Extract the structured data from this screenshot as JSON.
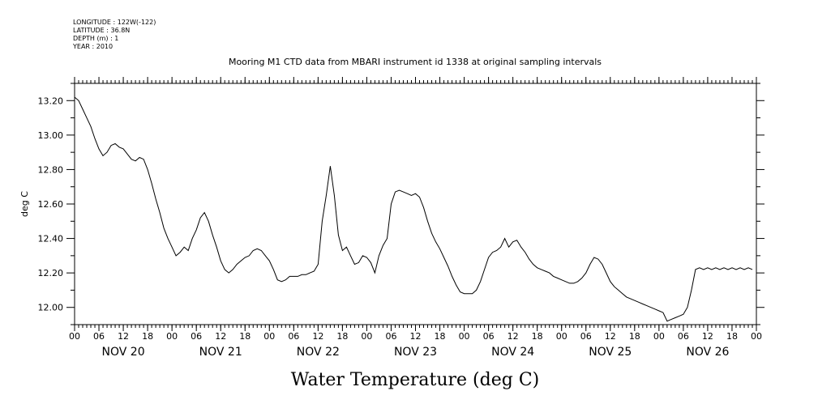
{
  "metadata": {
    "longitude": "LONGITUDE : 122W(-122)",
    "latitude": "LATITUDE : 36.8N",
    "depth": "DEPTH (m) : 1",
    "year": "YEAR : 2010"
  },
  "chart_data": {
    "type": "line",
    "title": "Mooring M1 CTD data from MBARI instrument id 1338 at original sampling intervals",
    "ylabel": "deg C",
    "xlabel": "Water Temperature (deg C)",
    "ylim": [
      11.9,
      13.3
    ],
    "xlim": [
      0,
      168
    ],
    "x_unit": "hours since NOV 20 00:00",
    "yticks": [
      12.0,
      12.2,
      12.4,
      12.6,
      12.8,
      13.0,
      13.2
    ],
    "ytick_labels": [
      "12.00",
      "12.20",
      "12.40",
      "12.60",
      "12.80",
      "13.00",
      "13.20"
    ],
    "hour_tick_labels": [
      "00",
      "06",
      "12",
      "18",
      "00",
      "06",
      "12",
      "18",
      "00",
      "06",
      "12",
      "18",
      "00",
      "06",
      "12",
      "18",
      "00",
      "06",
      "12",
      "18",
      "00",
      "06",
      "12",
      "18",
      "00",
      "06",
      "12",
      "18",
      "00"
    ],
    "day_labels": [
      "NOV 20",
      "NOV 21",
      "NOV 22",
      "NOV 23",
      "NOV 24",
      "NOV 25",
      "NOV 26"
    ],
    "grid": false,
    "series": [
      {
        "color": "#000000",
        "x": [
          0,
          1,
          2,
          3,
          4,
          5,
          6,
          7,
          8,
          9,
          10,
          11,
          12,
          13,
          14,
          15,
          16,
          17,
          18,
          19,
          20,
          21,
          22,
          23,
          24,
          25,
          26,
          27,
          28,
          29,
          30,
          31,
          32,
          33,
          34,
          35,
          36,
          37,
          38,
          39,
          40,
          41,
          42,
          43,
          44,
          45,
          46,
          47,
          48,
          49,
          50,
          51,
          52,
          53,
          54,
          55,
          56,
          57,
          58,
          59,
          60,
          61,
          62,
          63,
          64,
          65,
          66,
          67,
          68,
          69,
          70,
          71,
          72,
          73,
          74,
          75,
          76,
          77,
          78,
          79,
          80,
          81,
          82,
          83,
          84,
          85,
          86,
          87,
          88,
          89,
          90,
          91,
          92,
          93,
          94,
          95,
          96,
          97,
          98,
          99,
          100,
          101,
          102,
          103,
          104,
          105,
          106,
          107,
          108,
          109,
          110,
          111,
          112,
          113,
          114,
          115,
          116,
          117,
          118,
          119,
          120,
          121,
          122,
          123,
          124,
          125,
          126,
          127,
          128,
          129,
          130,
          131,
          132,
          133,
          134,
          135,
          136,
          137,
          138,
          139,
          140,
          141,
          142,
          143,
          144,
          145,
          146,
          147,
          148,
          149,
          150,
          151,
          152,
          153,
          154,
          155,
          156,
          157,
          158,
          159,
          160,
          161,
          162,
          163,
          164,
          165,
          166,
          167
        ],
        "values": [
          13.22,
          13.2,
          13.15,
          13.1,
          13.05,
          12.98,
          12.92,
          12.88,
          12.9,
          12.94,
          12.95,
          12.93,
          12.92,
          12.89,
          12.86,
          12.85,
          12.87,
          12.86,
          12.8,
          12.72,
          12.63,
          12.55,
          12.46,
          12.4,
          12.35,
          12.3,
          12.32,
          12.35,
          12.33,
          12.4,
          12.45,
          12.52,
          12.55,
          12.5,
          12.42,
          12.35,
          12.27,
          12.22,
          12.2,
          12.22,
          12.25,
          12.27,
          12.29,
          12.3,
          12.33,
          12.34,
          12.33,
          12.3,
          12.27,
          12.22,
          12.16,
          12.15,
          12.16,
          12.18,
          12.18,
          12.18,
          12.19,
          12.19,
          12.2,
          12.21,
          12.25,
          12.5,
          12.65,
          12.82,
          12.65,
          12.42,
          12.33,
          12.35,
          12.3,
          12.25,
          12.26,
          12.3,
          12.29,
          12.26,
          12.2,
          12.3,
          12.36,
          12.4,
          12.6,
          12.67,
          12.68,
          12.67,
          12.66,
          12.65,
          12.66,
          12.64,
          12.58,
          12.5,
          12.43,
          12.38,
          12.34,
          12.29,
          12.24,
          12.18,
          12.13,
          12.09,
          12.08,
          12.08,
          12.08,
          12.1,
          12.15,
          12.22,
          12.29,
          12.32,
          12.33,
          12.35,
          12.4,
          12.35,
          12.38,
          12.39,
          12.35,
          12.32,
          12.28,
          12.25,
          12.23,
          12.22,
          12.21,
          12.2,
          12.18,
          12.17,
          12.16,
          12.15,
          12.14,
          12.14,
          12.15,
          12.17,
          12.2,
          12.25,
          12.29,
          12.28,
          12.25,
          12.2,
          12.15,
          12.12,
          12.1,
          12.08,
          12.06,
          12.05,
          12.04,
          12.03,
          12.02,
          12.01,
          12.0,
          11.99,
          11.98,
          11.97,
          11.92,
          11.93,
          11.94,
          11.95,
          11.96,
          12.0,
          12.1,
          12.22,
          12.23,
          12.22,
          12.23,
          12.22,
          12.23,
          12.22,
          12.23,
          12.22,
          12.23,
          12.22,
          12.23,
          12.22,
          12.23,
          12.22
        ]
      }
    ]
  }
}
